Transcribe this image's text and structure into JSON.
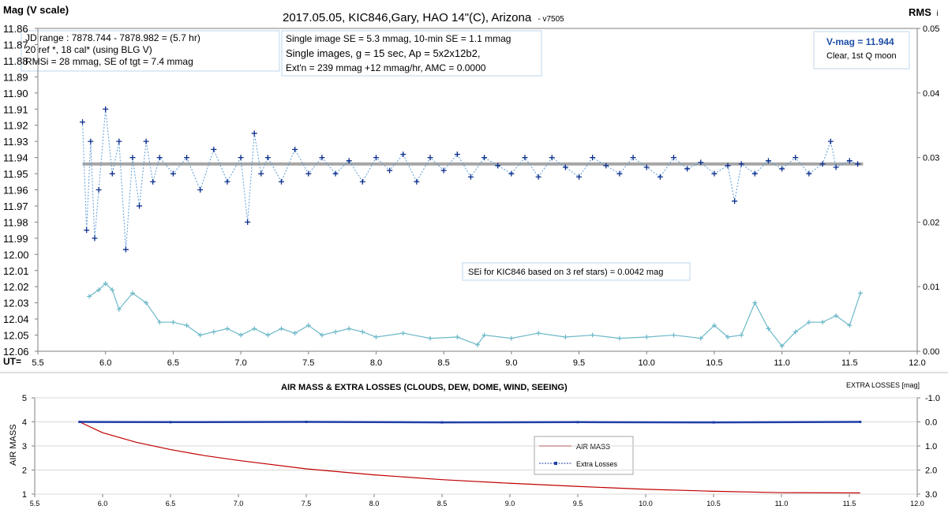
{
  "chart_data": [
    {
      "type": "scatter",
      "title": "2017.05.05,  KIC846,Gary,  HAO  14\"(C), Arizona",
      "version_tag": "- v7505",
      "ylabel": "Mag (V scale)",
      "y2label": "RMS",
      "y2label_suffix": "i",
      "xlabel": "UT=",
      "xlim": [
        5.5,
        12.0
      ],
      "ylim": [
        11.86,
        12.06
      ],
      "y_inverted": true,
      "y2lim": [
        0.0,
        0.05
      ],
      "x_ticks": [
        "5.5",
        "6.0",
        "6.5",
        "7.0",
        "7.5",
        "8.0",
        "8.5",
        "9.0",
        "9.5",
        "10.0",
        "10.5",
        "11.0",
        "11.5",
        "12.0"
      ],
      "y_ticks": [
        "11.86",
        "11.87",
        "11.88",
        "11.89",
        "11.90",
        "11.91",
        "11.92",
        "11.93",
        "11.94",
        "11.95",
        "11.96",
        "11.97",
        "11.98",
        "11.99",
        "12.00",
        "12.01",
        "12.02",
        "12.03",
        "12.04",
        "12.05",
        "12.06"
      ],
      "y2_ticks": [
        "0.00",
        "0.01",
        "0.02",
        "0.03",
        "0.04",
        "0.05"
      ],
      "grid": false,
      "annotations": {
        "jd_box": [
          "JD range  : 7878.744 - 7878.982 = (5.7 hr)",
          "20 ref *, 18 cal* (using BLG V)",
          "RMSi = 28 mmag, SE of tgt = 7.4 mmag"
        ],
        "se_box_line1": "Single image SE = 5.3 mmag, 10-min SE = 1.1 mmag",
        "se_box_line2": "Single images, g = 15 sec, Ap = 5x2x12b2,",
        "se_box_line3": "Ext'n = 239 mmag +12 mmag/hr, AMC = 0.0000",
        "vmag_label": "V-mag  = 11.944",
        "sky_label": "Clear, 1st Q moon",
        "sei_label": "SEi for KIC846 based on 3 ref stars) = 0.0042 mag"
      },
      "colors": {
        "magnitude": "#0b2d8c",
        "magnitude_line": "#5b9bd5",
        "rms": "#6cb8c8",
        "mean_line": "#a6a6a6",
        "vmag_text": "#1f4ea8"
      },
      "series": [
        {
          "id": "magnitude",
          "mean": 11.944,
          "x": [
            5.83,
            5.86,
            5.89,
            5.92,
            5.95,
            6.0,
            6.05,
            6.1,
            6.15,
            6.2,
            6.25,
            6.3,
            6.35,
            6.4,
            6.5,
            6.6,
            6.7,
            6.8,
            6.9,
            7.0,
            7.05,
            7.1,
            7.15,
            7.2,
            7.3,
            7.4,
            7.5,
            7.6,
            7.7,
            7.8,
            7.9,
            8.0,
            8.1,
            8.2,
            8.3,
            8.4,
            8.5,
            8.6,
            8.7,
            8.8,
            8.9,
            9.0,
            9.1,
            9.2,
            9.3,
            9.4,
            9.5,
            9.6,
            9.7,
            9.8,
            9.9,
            10.0,
            10.1,
            10.2,
            10.3,
            10.4,
            10.5,
            10.6,
            10.65,
            10.7,
            10.8,
            10.9,
            11.0,
            11.1,
            11.2,
            11.3,
            11.36,
            11.4,
            11.5,
            11.56
          ],
          "y": [
            11.918,
            11.985,
            11.93,
            11.99,
            11.96,
            11.91,
            11.95,
            11.93,
            11.997,
            11.94,
            11.97,
            11.93,
            11.955,
            11.94,
            11.95,
            11.94,
            11.96,
            11.935,
            11.955,
            11.94,
            11.98,
            11.925,
            11.95,
            11.94,
            11.955,
            11.935,
            11.95,
            11.94,
            11.95,
            11.942,
            11.955,
            11.94,
            11.948,
            11.938,
            11.955,
            11.94,
            11.948,
            11.938,
            11.952,
            11.94,
            11.945,
            11.95,
            11.94,
            11.952,
            11.94,
            11.946,
            11.952,
            11.94,
            11.945,
            11.95,
            11.94,
            11.946,
            11.952,
            11.94,
            11.947,
            11.943,
            11.95,
            11.945,
            11.967,
            11.944,
            11.95,
            11.942,
            11.947,
            11.94,
            11.95,
            11.944,
            11.93,
            11.946,
            11.942,
            11.944
          ]
        },
        {
          "id": "rms",
          "x": [
            5.88,
            5.95,
            6.0,
            6.05,
            6.1,
            6.2,
            6.3,
            6.4,
            6.5,
            6.6,
            6.7,
            6.8,
            6.9,
            7.0,
            7.1,
            7.2,
            7.3,
            7.4,
            7.5,
            7.6,
            7.7,
            7.8,
            7.9,
            8.0,
            8.2,
            8.4,
            8.6,
            8.75,
            8.8,
            9.0,
            9.2,
            9.4,
            9.6,
            9.8,
            10.0,
            10.2,
            10.4,
            10.5,
            10.6,
            10.7,
            10.8,
            10.9,
            11.0,
            11.1,
            11.2,
            11.3,
            11.4,
            11.5,
            11.58
          ],
          "y2": [
            0.0085,
            0.0095,
            0.0105,
            0.0095,
            0.0065,
            0.009,
            0.0075,
            0.0045,
            0.0045,
            0.004,
            0.0025,
            0.003,
            0.0035,
            0.0025,
            0.0035,
            0.0025,
            0.0035,
            0.0028,
            0.004,
            0.0025,
            0.003,
            0.0035,
            0.003,
            0.0022,
            0.0028,
            0.002,
            0.0022,
            0.001,
            0.0025,
            0.002,
            0.0028,
            0.0022,
            0.0025,
            0.002,
            0.0022,
            0.0025,
            0.002,
            0.004,
            0.0022,
            0.0025,
            0.0075,
            0.0035,
            0.0008,
            0.003,
            0.0045,
            0.0045,
            0.0055,
            0.004,
            0.009
          ]
        }
      ]
    },
    {
      "type": "line",
      "title": "AIR MASS & EXTRA LOSSES (CLOUDS, DEW, DOME, WIND, SEEING)",
      "ylabel": "AIR MASS",
      "y2label": "EXTRA LOSSES [mag]",
      "xlim": [
        5.5,
        12.0
      ],
      "ylim": [
        1,
        5
      ],
      "y2lim": [
        -1.0,
        3.0
      ],
      "y2_inverted": true,
      "x_ticks": [
        "5.5",
        "6.0",
        "6.5",
        "7.0",
        "7.5",
        "8.0",
        "8.5",
        "9.0",
        "9.5",
        "10.0",
        "10.5",
        "11.0",
        "11.5",
        "12.0"
      ],
      "y_ticks": [
        "1",
        "2",
        "3",
        "4",
        "5"
      ],
      "y2_ticks": [
        "-1.0",
        "0.0",
        "1.0",
        "2.0",
        "3.0"
      ],
      "legend_position": "center-right",
      "colors": {
        "air_mass": "#c00000",
        "extra_losses": "#1f3fa6"
      },
      "series": [
        {
          "name": "AIR MASS",
          "x": [
            5.83,
            6.0,
            6.25,
            6.5,
            6.75,
            7.0,
            7.5,
            8.0,
            8.5,
            9.0,
            9.5,
            10.0,
            10.5,
            11.0,
            11.58
          ],
          "y": [
            4.0,
            3.55,
            3.15,
            2.85,
            2.6,
            2.4,
            2.05,
            1.8,
            1.6,
            1.45,
            1.32,
            1.2,
            1.12,
            1.06,
            1.05
          ]
        },
        {
          "name": "Extra Losses",
          "x": [
            5.83,
            6.5,
            7.5,
            8.5,
            9.5,
            10.5,
            11.58
          ],
          "y2": [
            0.0,
            0.01,
            0.0,
            0.02,
            0.01,
            0.02,
            0.0
          ]
        }
      ]
    }
  ]
}
